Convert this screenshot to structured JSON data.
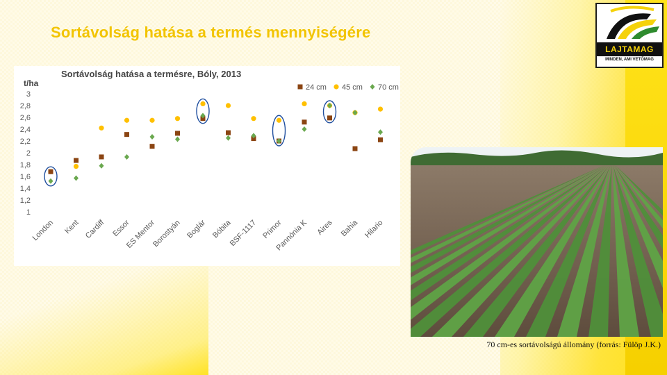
{
  "slide": {
    "title": "Sortávolság hatása a termés mennyiségére",
    "caption": "70 cm-es sortávolságú állomány (forrás: Fülöp J.K.)"
  },
  "logo": {
    "name": "LAJTAMAG",
    "slogan": "MINDEN, AMI VETŐMAG",
    "colors": {
      "primary": "#f5d20a",
      "dark": "#111111",
      "green": "#2e8b2e"
    }
  },
  "photo": {
    "icon": "soybean-field-photo"
  },
  "chart_data": {
    "type": "scatter",
    "title": "Sortávolság hatása a termésre, Bóly, 2013",
    "ylabel": "t/ha",
    "xlabel": "",
    "ylim": [
      1,
      3
    ],
    "yticks": [
      "3",
      "2,8",
      "2,6",
      "2,4",
      "2,2",
      "2",
      "1,8",
      "1,6",
      "1,4",
      "1,2",
      "1"
    ],
    "grid": false,
    "legend_position": "top-right",
    "categories": [
      "London",
      "Kent",
      "Cardiff",
      "Essor",
      "ES Mentor",
      "Borostyán",
      "Boglár",
      "Bóbita",
      "BSF-1117",
      "Primor",
      "Pannónia K",
      "Aires",
      "Bahia",
      "Hilario"
    ],
    "series": [
      {
        "name": "24 cm",
        "marker": "square",
        "color": "#8b4513",
        "values": [
          1.68,
          1.87,
          1.93,
          2.31,
          2.11,
          2.33,
          2.58,
          2.34,
          2.24,
          2.2,
          2.52,
          2.59,
          2.07,
          2.22
        ]
      },
      {
        "name": "45 cm",
        "marker": "circle",
        "color": "#ffc000",
        "values": [
          1.68,
          1.77,
          2.42,
          2.55,
          2.55,
          2.58,
          2.83,
          2.8,
          2.58,
          2.55,
          2.83,
          2.8,
          2.68,
          2.74
        ]
      },
      {
        "name": "70 cm",
        "marker": "diamond",
        "color": "#6aa84f",
        "values": [
          1.52,
          1.57,
          1.78,
          1.93,
          2.27,
          2.23,
          2.63,
          2.25,
          2.29,
          2.2,
          2.4,
          2.8,
          2.68,
          2.35
        ]
      }
    ],
    "highlighted_categories": [
      "London",
      "Boglár",
      "Primor",
      "Aires"
    ]
  }
}
